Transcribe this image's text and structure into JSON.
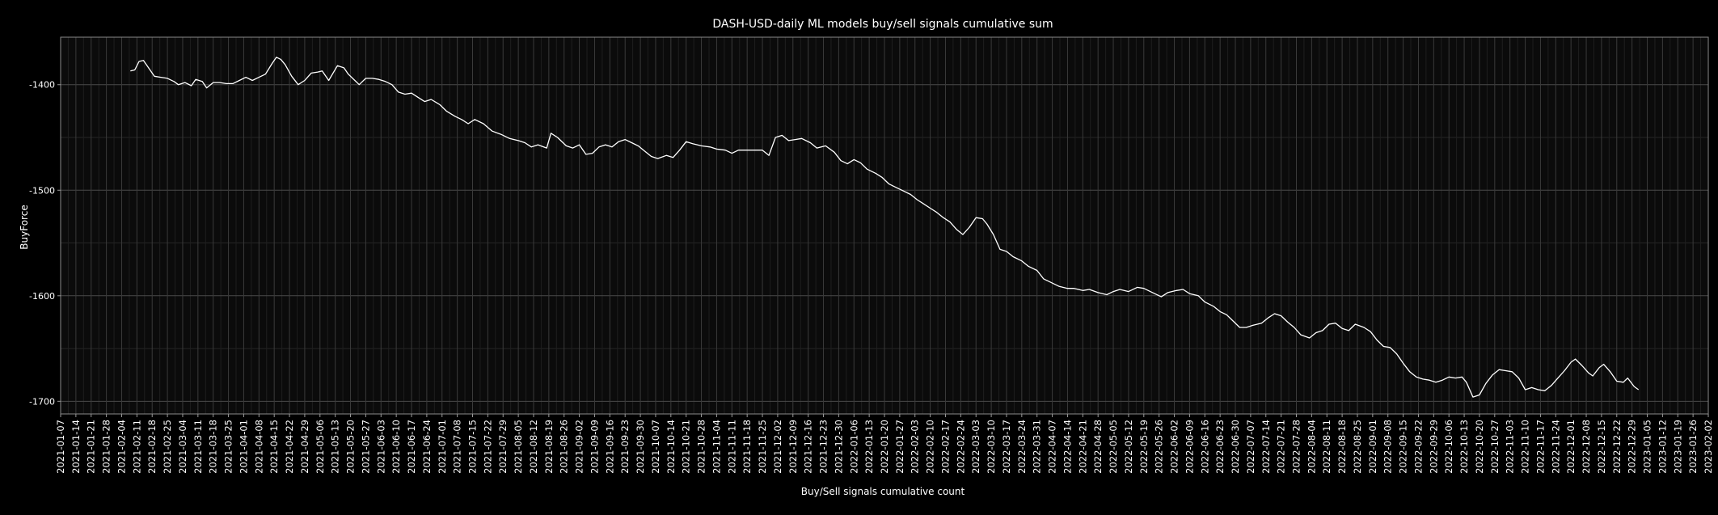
{
  "chart_data": {
    "type": "line",
    "title": "DASH-USD-daily ML models buy/sell signals cumulative sum",
    "xlabel": "Buy/Sell signals cumulative count",
    "ylabel": "BuyForce",
    "y_ticks": [
      -1400,
      -1500,
      -1600,
      -1700
    ],
    "ylim": [
      -1712,
      -1355
    ],
    "x_ticks": [
      "2021-01-07",
      "2021-01-14",
      "2021-01-21",
      "2021-01-28",
      "2021-02-04",
      "2021-02-11",
      "2021-02-18",
      "2021-02-25",
      "2021-03-04",
      "2021-03-11",
      "2021-03-18",
      "2021-03-25",
      "2021-04-01",
      "2021-04-08",
      "2021-04-15",
      "2021-04-22",
      "2021-04-29",
      "2021-05-06",
      "2021-05-13",
      "2021-05-20",
      "2021-05-27",
      "2021-06-03",
      "2021-06-10",
      "2021-06-17",
      "2021-06-24",
      "2021-07-01",
      "2021-07-08",
      "2021-07-15",
      "2021-07-22",
      "2021-07-29",
      "2021-08-05",
      "2021-08-12",
      "2021-08-19",
      "2021-08-26",
      "2021-09-02",
      "2021-09-09",
      "2021-09-16",
      "2021-09-23",
      "2021-09-30",
      "2021-10-07",
      "2021-10-14",
      "2021-10-21",
      "2021-10-28",
      "2021-11-04",
      "2021-11-11",
      "2021-11-18",
      "2021-11-25",
      "2021-12-02",
      "2021-12-09",
      "2021-12-16",
      "2021-12-23",
      "2021-12-30",
      "2022-01-06",
      "2022-01-13",
      "2022-01-20",
      "2022-01-27",
      "2022-02-03",
      "2022-02-10",
      "2022-02-17",
      "2022-02-24",
      "2022-03-03",
      "2022-03-10",
      "2022-03-17",
      "2022-03-24",
      "2022-03-31",
      "2022-04-07",
      "2022-04-14",
      "2022-04-21",
      "2022-04-28",
      "2022-05-05",
      "2022-05-12",
      "2022-05-19",
      "2022-05-26",
      "2022-06-02",
      "2022-06-09",
      "2022-06-16",
      "2022-06-23",
      "2022-06-30",
      "2022-07-07",
      "2022-07-14",
      "2022-07-21",
      "2022-07-28",
      "2022-08-04",
      "2022-08-11",
      "2022-08-18",
      "2022-08-25",
      "2022-09-01",
      "2022-09-08",
      "2022-09-15",
      "2022-09-22",
      "2022-09-29",
      "2022-10-06",
      "2022-10-13",
      "2022-10-20",
      "2022-10-27",
      "2022-11-03",
      "2022-11-10",
      "2022-11-17",
      "2022-11-24",
      "2022-12-01",
      "2022-12-08",
      "2022-12-15",
      "2022-12-22",
      "2022-12-29",
      "2023-01-05",
      "2023-01-12",
      "2023-01-19",
      "2023-01-26",
      "2023-02-02"
    ],
    "grid": true,
    "series": [
      {
        "color": "#ffffff",
        "points": [
          [
            "2021-02-08",
            -1387
          ],
          [
            "2021-02-10",
            -1386
          ],
          [
            "2021-02-12",
            -1378
          ],
          [
            "2021-02-14",
            -1377
          ],
          [
            "2021-02-16",
            -1383
          ],
          [
            "2021-02-19",
            -1392
          ],
          [
            "2021-02-22",
            -1393
          ],
          [
            "2021-02-25",
            -1394
          ],
          [
            "2021-02-28",
            -1397
          ],
          [
            "2021-03-02",
            -1400
          ],
          [
            "2021-03-05",
            -1398
          ],
          [
            "2021-03-08",
            -1401
          ],
          [
            "2021-03-10",
            -1395
          ],
          [
            "2021-03-13",
            -1397
          ],
          [
            "2021-03-15",
            -1403
          ],
          [
            "2021-03-18",
            -1398
          ],
          [
            "2021-03-21",
            -1398
          ],
          [
            "2021-03-24",
            -1399
          ],
          [
            "2021-03-27",
            -1399
          ],
          [
            "2021-03-30",
            -1396
          ],
          [
            "2021-04-02",
            -1393
          ],
          [
            "2021-04-05",
            -1396
          ],
          [
            "2021-04-08",
            -1393
          ],
          [
            "2021-04-11",
            -1390
          ],
          [
            "2021-04-14",
            -1380
          ],
          [
            "2021-04-16",
            -1374
          ],
          [
            "2021-04-18",
            -1376
          ],
          [
            "2021-04-20",
            -1381
          ],
          [
            "2021-04-23",
            -1392
          ],
          [
            "2021-04-26",
            -1400
          ],
          [
            "2021-04-29",
            -1396
          ],
          [
            "2021-05-02",
            -1389
          ],
          [
            "2021-05-05",
            -1388
          ],
          [
            "2021-05-07",
            -1387
          ],
          [
            "2021-05-10",
            -1396
          ],
          [
            "2021-05-14",
            -1382
          ],
          [
            "2021-05-17",
            -1384
          ],
          [
            "2021-05-19",
            -1390
          ],
          [
            "2021-05-22",
            -1396
          ],
          [
            "2021-05-24",
            -1400
          ],
          [
            "2021-05-27",
            -1394
          ],
          [
            "2021-05-30",
            -1394
          ],
          [
            "2021-06-02",
            -1395
          ],
          [
            "2021-06-05",
            -1397
          ],
          [
            "2021-06-08",
            -1400
          ],
          [
            "2021-06-11",
            -1407
          ],
          [
            "2021-06-14",
            -1409
          ],
          [
            "2021-06-17",
            -1408
          ],
          [
            "2021-06-20",
            -1412
          ],
          [
            "2021-06-23",
            -1416
          ],
          [
            "2021-06-26",
            -1414
          ],
          [
            "2021-06-30",
            -1419
          ],
          [
            "2021-07-03",
            -1425
          ],
          [
            "2021-07-07",
            -1430
          ],
          [
            "2021-07-10",
            -1433
          ],
          [
            "2021-07-13",
            -1437
          ],
          [
            "2021-07-16",
            -1433
          ],
          [
            "2021-07-20",
            -1437
          ],
          [
            "2021-07-24",
            -1444
          ],
          [
            "2021-07-28",
            -1447
          ],
          [
            "2021-08-01",
            -1451
          ],
          [
            "2021-08-05",
            -1453
          ],
          [
            "2021-08-08",
            -1455
          ],
          [
            "2021-08-11",
            -1459
          ],
          [
            "2021-08-14",
            -1457
          ],
          [
            "2021-08-18",
            -1460
          ],
          [
            "2021-08-20",
            -1446
          ],
          [
            "2021-08-23",
            -1450
          ],
          [
            "2021-08-27",
            -1458
          ],
          [
            "2021-08-30",
            -1460
          ],
          [
            "2021-09-02",
            -1457
          ],
          [
            "2021-09-05",
            -1466
          ],
          [
            "2021-09-08",
            -1465
          ],
          [
            "2021-09-11",
            -1459
          ],
          [
            "2021-09-14",
            -1457
          ],
          [
            "2021-09-17",
            -1459
          ],
          [
            "2021-09-20",
            -1454
          ],
          [
            "2021-09-23",
            -1452
          ],
          [
            "2021-09-26",
            -1455
          ],
          [
            "2021-09-29",
            -1458
          ],
          [
            "2021-10-02",
            -1463
          ],
          [
            "2021-10-05",
            -1468
          ],
          [
            "2021-10-08",
            -1470
          ],
          [
            "2021-10-12",
            -1467
          ],
          [
            "2021-10-15",
            -1469
          ],
          [
            "2021-10-18",
            -1462
          ],
          [
            "2021-10-21",
            -1454
          ],
          [
            "2021-10-24",
            -1456
          ],
          [
            "2021-10-28",
            -1458
          ],
          [
            "2021-11-01",
            -1459
          ],
          [
            "2021-11-04",
            -1461
          ],
          [
            "2021-11-08",
            -1462
          ],
          [
            "2021-11-11",
            -1465
          ],
          [
            "2021-11-14",
            -1462
          ],
          [
            "2021-11-18",
            -1462
          ],
          [
            "2021-11-22",
            -1462
          ],
          [
            "2021-11-25",
            -1462
          ],
          [
            "2021-11-28",
            -1467
          ],
          [
            "2021-12-01",
            -1450
          ],
          [
            "2021-12-04",
            -1448
          ],
          [
            "2021-12-07",
            -1453
          ],
          [
            "2021-12-10",
            -1452
          ],
          [
            "2021-12-13",
            -1451
          ],
          [
            "2021-12-17",
            -1455
          ],
          [
            "2021-12-20",
            -1460
          ],
          [
            "2021-12-24",
            -1458
          ],
          [
            "2021-12-28",
            -1464
          ],
          [
            "2021-12-31",
            -1472
          ],
          [
            "2022-01-03",
            -1475
          ],
          [
            "2022-01-06",
            -1471
          ],
          [
            "2022-01-09",
            -1474
          ],
          [
            "2022-01-12",
            -1480
          ],
          [
            "2022-01-16",
            -1484
          ],
          [
            "2022-01-19",
            -1488
          ],
          [
            "2022-01-22",
            -1494
          ],
          [
            "2022-01-25",
            -1497
          ],
          [
            "2022-01-28",
            -1500
          ],
          [
            "2022-02-01",
            -1504
          ],
          [
            "2022-02-04",
            -1509
          ],
          [
            "2022-02-07",
            -1513
          ],
          [
            "2022-02-10",
            -1517
          ],
          [
            "2022-02-13",
            -1521
          ],
          [
            "2022-02-16",
            -1526
          ],
          [
            "2022-02-19",
            -1530
          ],
          [
            "2022-02-22",
            -1537
          ],
          [
            "2022-02-25",
            -1542
          ],
          [
            "2022-02-28",
            -1535
          ],
          [
            "2022-03-03",
            -1526
          ],
          [
            "2022-03-06",
            -1527
          ],
          [
            "2022-03-08",
            -1532
          ],
          [
            "2022-03-11",
            -1542
          ],
          [
            "2022-03-14",
            -1556
          ],
          [
            "2022-03-17",
            -1558
          ],
          [
            "2022-03-20",
            -1563
          ],
          [
            "2022-03-24",
            -1567
          ],
          [
            "2022-03-27",
            -1572
          ],
          [
            "2022-03-31",
            -1576
          ],
          [
            "2022-04-03",
            -1584
          ],
          [
            "2022-04-06",
            -1587
          ],
          [
            "2022-04-10",
            -1591
          ],
          [
            "2022-04-14",
            -1593
          ],
          [
            "2022-04-17",
            -1593
          ],
          [
            "2022-04-21",
            -1595
          ],
          [
            "2022-04-24",
            -1594
          ],
          [
            "2022-04-28",
            -1597
          ],
          [
            "2022-05-02",
            -1599
          ],
          [
            "2022-05-05",
            -1596
          ],
          [
            "2022-05-08",
            -1594
          ],
          [
            "2022-05-12",
            -1596
          ],
          [
            "2022-05-16",
            -1592
          ],
          [
            "2022-05-19",
            -1593
          ],
          [
            "2022-05-23",
            -1597
          ],
          [
            "2022-05-27",
            -1601
          ],
          [
            "2022-05-30",
            -1597
          ],
          [
            "2022-06-03",
            -1595
          ],
          [
            "2022-06-06",
            -1594
          ],
          [
            "2022-06-09",
            -1598
          ],
          [
            "2022-06-13",
            -1600
          ],
          [
            "2022-06-16",
            -1606
          ],
          [
            "2022-06-20",
            -1610
          ],
          [
            "2022-06-23",
            -1615
          ],
          [
            "2022-06-26",
            -1618
          ],
          [
            "2022-06-29",
            -1624
          ],
          [
            "2022-07-02",
            -1630
          ],
          [
            "2022-07-05",
            -1630
          ],
          [
            "2022-07-08",
            -1628
          ],
          [
            "2022-07-12",
            -1626
          ],
          [
            "2022-07-15",
            -1621
          ],
          [
            "2022-07-18",
            -1617
          ],
          [
            "2022-07-21",
            -1619
          ],
          [
            "2022-07-24",
            -1625
          ],
          [
            "2022-07-27",
            -1630
          ],
          [
            "2022-07-30",
            -1637
          ],
          [
            "2022-08-03",
            -1640
          ],
          [
            "2022-08-06",
            -1635
          ],
          [
            "2022-08-09",
            -1633
          ],
          [
            "2022-08-12",
            -1627
          ],
          [
            "2022-08-15",
            -1626
          ],
          [
            "2022-08-18",
            -1631
          ],
          [
            "2022-08-21",
            -1633
          ],
          [
            "2022-08-24",
            -1627
          ],
          [
            "2022-08-28",
            -1630
          ],
          [
            "2022-08-31",
            -1634
          ],
          [
            "2022-09-03",
            -1642
          ],
          [
            "2022-09-06",
            -1648
          ],
          [
            "2022-09-09",
            -1649
          ],
          [
            "2022-09-12",
            -1655
          ],
          [
            "2022-09-15",
            -1664
          ],
          [
            "2022-09-18",
            -1672
          ],
          [
            "2022-09-21",
            -1677
          ],
          [
            "2022-09-24",
            -1679
          ],
          [
            "2022-09-27",
            -1680
          ],
          [
            "2022-09-30",
            -1682
          ],
          [
            "2022-10-03",
            -1680
          ],
          [
            "2022-10-06",
            -1677
          ],
          [
            "2022-10-09",
            -1678
          ],
          [
            "2022-10-12",
            -1677
          ],
          [
            "2022-10-14",
            -1682
          ],
          [
            "2022-10-17",
            -1696
          ],
          [
            "2022-10-20",
            -1694
          ],
          [
            "2022-10-23",
            -1683
          ],
          [
            "2022-10-26",
            -1675
          ],
          [
            "2022-10-29",
            -1670
          ],
          [
            "2022-11-01",
            -1671
          ],
          [
            "2022-11-04",
            -1672
          ],
          [
            "2022-11-07",
            -1678
          ],
          [
            "2022-11-10",
            -1689
          ],
          [
            "2022-11-13",
            -1687
          ],
          [
            "2022-11-16",
            -1689
          ],
          [
            "2022-11-19",
            -1690
          ],
          [
            "2022-11-22",
            -1685
          ],
          [
            "2022-11-25",
            -1678
          ],
          [
            "2022-11-28",
            -1671
          ],
          [
            "2022-12-01",
            -1663
          ],
          [
            "2022-12-03",
            -1660
          ],
          [
            "2022-12-06",
            -1666
          ],
          [
            "2022-12-09",
            -1673
          ],
          [
            "2022-12-11",
            -1676
          ],
          [
            "2022-12-14",
            -1668
          ],
          [
            "2022-12-16",
            -1665
          ],
          [
            "2022-12-19",
            -1672
          ],
          [
            "2022-12-22",
            -1681
          ],
          [
            "2022-12-25",
            -1682
          ],
          [
            "2022-12-27",
            -1678
          ],
          [
            "2022-12-30",
            -1686
          ],
          [
            "2023-01-01",
            -1689
          ]
        ]
      }
    ]
  }
}
